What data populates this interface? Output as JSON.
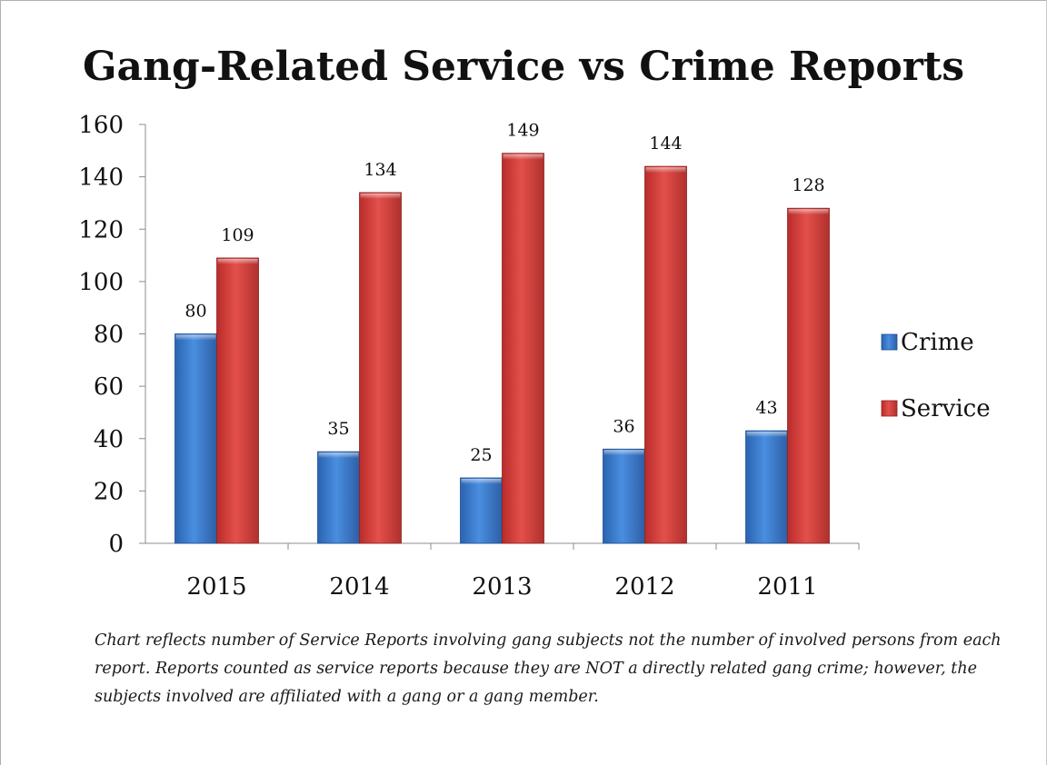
{
  "chart_data": {
    "type": "bar",
    "title": "Gang-Related Service vs Crime Reports",
    "categories": [
      "2015",
      "2014",
      "2013",
      "2012",
      "2011"
    ],
    "series": [
      {
        "name": "Crime",
        "values": [
          80,
          35,
          25,
          36,
          43
        ],
        "color": "#3f7fd0"
      },
      {
        "name": "Service",
        "values": [
          109,
          134,
          149,
          144,
          128
        ],
        "color": "#d8403c"
      }
    ],
    "ylim": [
      0,
      160
    ],
    "yticks": [
      0,
      20,
      40,
      60,
      80,
      100,
      120,
      140,
      160
    ],
    "xlabel": "",
    "ylabel": "",
    "grid": false,
    "legend": "right"
  },
  "note": "Chart reflects number of Service Reports involving gang subjects not the number of involved persons from each report. Reports counted as service reports because they are NOT a directly related gang crime; however, the subjects involved are affiliated with a gang or a gang member."
}
